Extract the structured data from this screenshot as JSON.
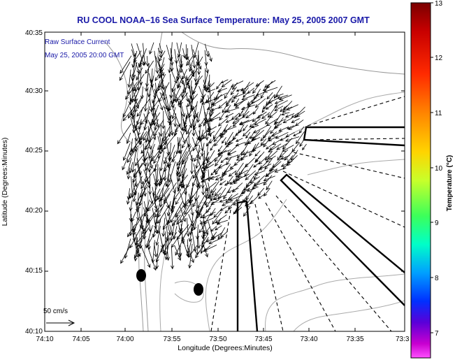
{
  "title": "RU COOL  NOAA–16  Sea Surface Temperature:  May 25, 2005 2007 GMT",
  "legend": {
    "line1": "Raw Surface Current",
    "line2": "May 25, 2005 20:00 GMT"
  },
  "scale": {
    "label": "50 cm/s"
  },
  "axes": {
    "xlabel": "Longitude (Degrees:Minutes)",
    "ylabel": "Latitude (Degrees:Minutes)",
    "x_ticks": [
      "74:10",
      "74:05",
      "74:00",
      "73:55",
      "73:50",
      "73:45",
      "73:40",
      "73:35",
      "73:3"
    ],
    "y_ticks": [
      "40:35",
      "40:30",
      "40:25",
      "40:20",
      "40:15",
      "40:10"
    ]
  },
  "colorbar": {
    "label": "Temperature (°C)",
    "ticks": [
      "13",
      "12",
      "11",
      "10",
      "9",
      "8",
      "7"
    ]
  },
  "colors": {
    "title": "#1a1aa8",
    "coast": "#999999",
    "arrows": "#000000"
  }
}
